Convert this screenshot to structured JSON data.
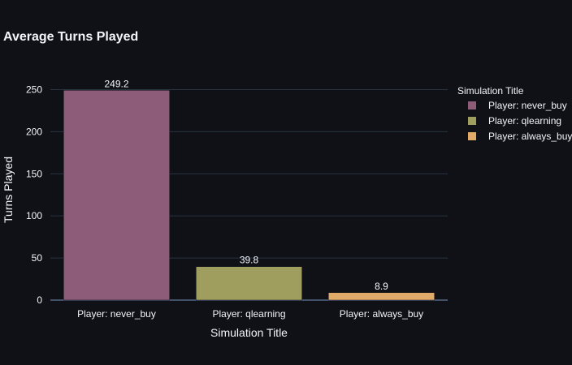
{
  "chart_data": {
    "type": "bar",
    "title": "Average Turns Played",
    "xlabel": "Simulation Title",
    "ylabel": "Turns Played",
    "ylim": [
      0,
      262
    ],
    "yticks": [
      0,
      50,
      100,
      150,
      200,
      250
    ],
    "grid": true,
    "legend_title": "Simulation Title",
    "legend_position": "right",
    "categories": [
      "Player: never_buy",
      "Player: qlearning",
      "Player: always_buy"
    ],
    "series": [
      {
        "name": "Player: never_buy",
        "category": "Player: never_buy",
        "value": 249.2,
        "label": "249.2",
        "color": "#8c5c78"
      },
      {
        "name": "Player: qlearning",
        "category": "Player: qlearning",
        "value": 39.8,
        "label": "39.8",
        "color": "#a09e5e"
      },
      {
        "name": "Player: always_buy",
        "category": "Player: always_buy",
        "value": 8.9,
        "label": "8.9",
        "color": "#e0ab68"
      }
    ]
  }
}
